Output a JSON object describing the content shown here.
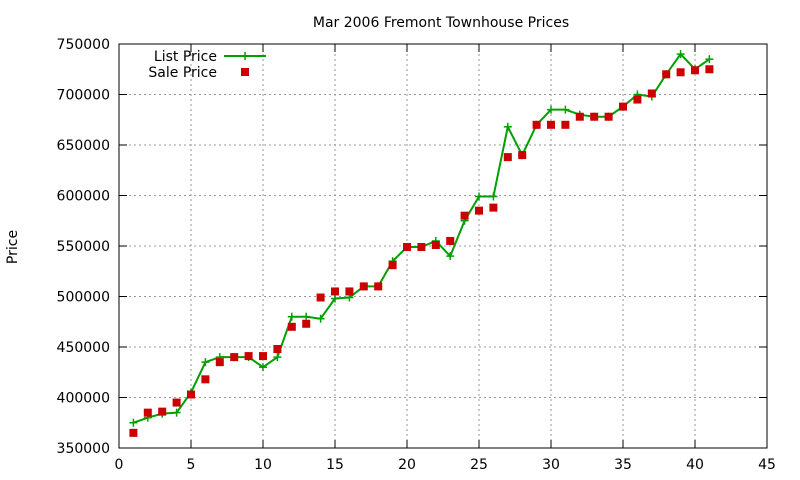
{
  "chart_data": {
    "type": "line",
    "title": "Mar 2006 Fremont Townhouse Prices",
    "xlabel": "",
    "ylabel": "Price",
    "xlim": [
      0,
      45
    ],
    "ylim": [
      350000,
      750000
    ],
    "xticks": [
      0,
      5,
      10,
      15,
      20,
      25,
      30,
      35,
      40,
      45
    ],
    "yticks": [
      350000,
      400000,
      450000,
      500000,
      550000,
      600000,
      650000,
      700000,
      750000
    ],
    "grid": true,
    "legend": "top-left",
    "series": [
      {
        "name": "List Price",
        "style": "line+cross",
        "color": "#00a000",
        "x": [
          1,
          2,
          3,
          4,
          5,
          6,
          7,
          8,
          9,
          10,
          11,
          12,
          13,
          14,
          15,
          16,
          17,
          18,
          19,
          20,
          21,
          22,
          23,
          24,
          25,
          26,
          27,
          28,
          29,
          30,
          31,
          32,
          33,
          34,
          35,
          36,
          37,
          38,
          39,
          40,
          41
        ],
        "y": [
          375000,
          380000,
          384000,
          385000,
          405000,
          435000,
          440000,
          440000,
          440000,
          430000,
          440000,
          480000,
          480000,
          478000,
          498000,
          499000,
          510000,
          510000,
          535000,
          549000,
          549000,
          555000,
          540000,
          575000,
          599000,
          599000,
          668000,
          640000,
          670000,
          685000,
          685000,
          680000,
          678000,
          678000,
          688000,
          700000,
          698000,
          720000,
          740000,
          725000,
          735000
        ]
      },
      {
        "name": "Sale Price",
        "style": "square",
        "color": "#cc0000",
        "x": [
          1,
          2,
          3,
          4,
          5,
          6,
          7,
          8,
          9,
          10,
          11,
          12,
          13,
          14,
          15,
          16,
          17,
          18,
          19,
          20,
          21,
          22,
          23,
          24,
          25,
          26,
          27,
          28,
          29,
          30,
          31,
          32,
          33,
          34,
          35,
          36,
          37,
          38,
          39,
          40,
          41
        ],
        "y": [
          365000,
          385000,
          386000,
          395000,
          403000,
          418000,
          435000,
          440000,
          441000,
          441000,
          448000,
          470000,
          473000,
          499000,
          505000,
          505000,
          510000,
          510000,
          531000,
          549000,
          549000,
          551000,
          555000,
          580000,
          585000,
          588000,
          638000,
          640000,
          670000,
          670000,
          670000,
          678000,
          678000,
          678000,
          688000,
          695000,
          701000,
          720000,
          722000,
          724000,
          725000
        ]
      }
    ]
  }
}
